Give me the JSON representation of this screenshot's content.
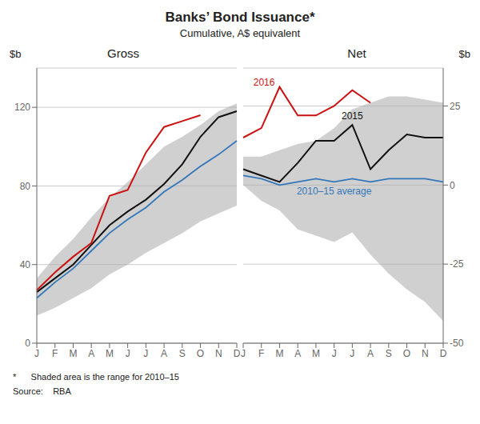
{
  "title": "Banks’ Bond Issuance*",
  "subtitle": "Cumulative, A$ equivalent",
  "footnote": "*      Shaded area is the range for 2010–15",
  "source": "Source:    RBA",
  "chart_data": [
    {
      "type": "line",
      "title": "Gross",
      "ylabel": "$b",
      "categories": [
        "J",
        "F",
        "M",
        "A",
        "M",
        "J",
        "J",
        "A",
        "S",
        "O",
        "N",
        "D"
      ],
      "ylim": [
        0,
        140
      ],
      "yticks": [
        0,
        40,
        80,
        120
      ],
      "grid": true,
      "series": [
        {
          "type": "area",
          "color": "#aaaaaa",
          "lower": [
            14,
            18,
            23,
            28,
            35,
            40,
            46,
            51,
            56,
            62,
            66,
            70
          ],
          "upper": [
            33,
            44,
            53,
            64,
            74,
            82,
            91,
            100,
            105,
            111,
            118,
            122
          ]
        },
        {
          "type": "line",
          "color": "#3377bb",
          "values": [
            23,
            31,
            38,
            47,
            56,
            63,
            69,
            77,
            83,
            90,
            96,
            103
          ]
        },
        {
          "type": "line",
          "color": "#111111",
          "values": [
            26,
            33,
            40,
            50,
            60,
            67,
            73,
            81,
            91,
            105,
            115,
            118
          ]
        },
        {
          "type": "line",
          "color": "#cc1111",
          "values": [
            27,
            36,
            44,
            51,
            75,
            78,
            97,
            110,
            113,
            116,
            null,
            null
          ]
        }
      ]
    },
    {
      "type": "line",
      "title": "Net",
      "ylabel": "$b",
      "categories": [
        "J",
        "F",
        "M",
        "A",
        "M",
        "J",
        "J",
        "A",
        "S",
        "O",
        "N",
        "D"
      ],
      "ylim": [
        -50,
        37
      ],
      "yticks": [
        -50,
        -25,
        0,
        25
      ],
      "grid": true,
      "series": [
        {
          "type": "area",
          "color": "#aaaaaa",
          "lower": [
            0,
            -5,
            -8,
            -14,
            -16,
            -18,
            -15,
            -22,
            -28,
            -33,
            -37,
            -43
          ],
          "upper": [
            9,
            9,
            11,
            13,
            14,
            18,
            24,
            26,
            28,
            28,
            27,
            26
          ]
        },
        {
          "type": "line",
          "name": "2010–15 average",
          "color": "#3377bb",
          "values": [
            3,
            2,
            0,
            1,
            2,
            1,
            2,
            1,
            2,
            2,
            2,
            1
          ]
        },
        {
          "type": "line",
          "name": "2015",
          "color": "#111111",
          "values": [
            5,
            3,
            1,
            7,
            14,
            14,
            19,
            5,
            11,
            16,
            15,
            15
          ]
        },
        {
          "type": "line",
          "name": "2016",
          "color": "#cc1111",
          "values": [
            15,
            18,
            31,
            22,
            22,
            25,
            30,
            26,
            null,
            null,
            null,
            null
          ]
        }
      ]
    }
  ]
}
